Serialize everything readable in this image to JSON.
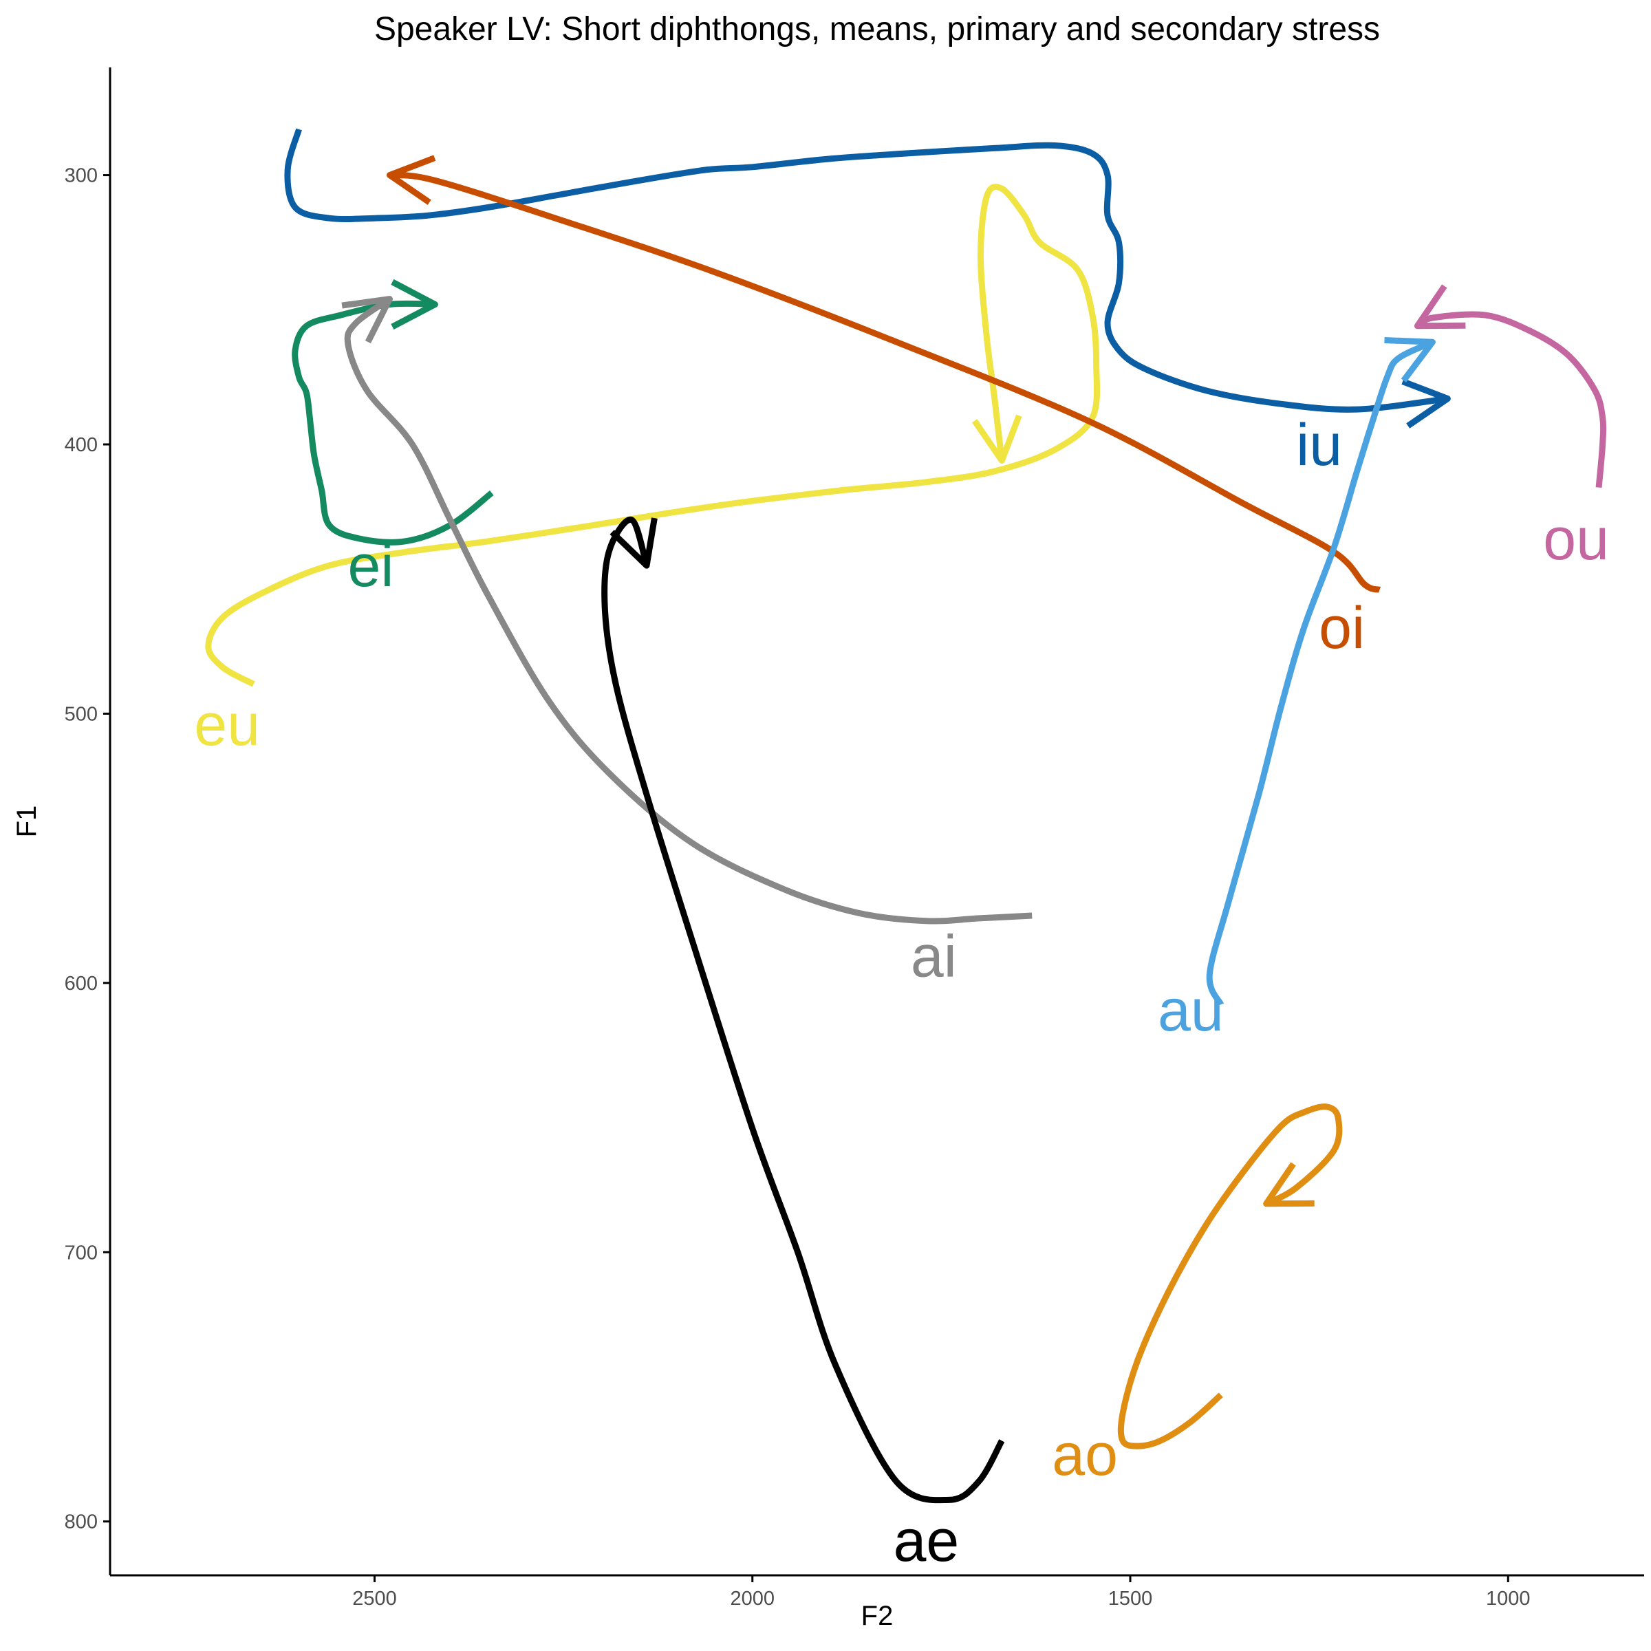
{
  "chart_data": {
    "type": "line",
    "title": "Speaker LV: Short diphthongs, means, primary and secondary stress",
    "xlabel": "F2",
    "ylabel": "F1",
    "x_reversed": true,
    "y_reversed": true,
    "xlim": [
      2850,
      820
    ],
    "ylim": [
      260,
      820
    ],
    "x_ticks": [
      2500,
      2000,
      1500,
      1000
    ],
    "y_ticks": [
      300,
      400,
      500,
      600,
      700,
      800
    ],
    "grid": false,
    "legend": "none",
    "series": [
      {
        "name": "iu",
        "color": "#0B5EA3",
        "label_pos": [
          1250,
          400
        ],
        "points": [
          [
            2600,
            283
          ],
          [
            2615,
            298
          ],
          [
            2605,
            312
          ],
          [
            2560,
            316
          ],
          [
            2500,
            316
          ],
          [
            2430,
            315
          ],
          [
            2350,
            312
          ],
          [
            2250,
            307
          ],
          [
            2150,
            302
          ],
          [
            2060,
            298
          ],
          [
            2000,
            297
          ],
          [
            1900,
            294
          ],
          [
            1800,
            292
          ],
          [
            1680,
            290
          ],
          [
            1600,
            289
          ],
          [
            1550,
            292
          ],
          [
            1530,
            300
          ],
          [
            1530,
            315
          ],
          [
            1515,
            325
          ],
          [
            1515,
            340
          ],
          [
            1530,
            355
          ],
          [
            1515,
            365
          ],
          [
            1480,
            372
          ],
          [
            1400,
            380
          ],
          [
            1300,
            385
          ],
          [
            1200,
            387
          ],
          [
            1080,
            383
          ]
        ]
      },
      {
        "name": "eu",
        "color": "#F0E442",
        "label_pos": [
          2695,
          504
        ],
        "points": [
          [
            2660,
            489
          ],
          [
            2700,
            483
          ],
          [
            2720,
            475
          ],
          [
            2700,
            464
          ],
          [
            2640,
            454
          ],
          [
            2560,
            445
          ],
          [
            2460,
            440
          ],
          [
            2350,
            436
          ],
          [
            2210,
            430
          ],
          [
            2100,
            425
          ],
          [
            2000,
            421
          ],
          [
            1880,
            417
          ],
          [
            1770,
            414
          ],
          [
            1680,
            410
          ],
          [
            1600,
            402
          ],
          [
            1550,
            390
          ],
          [
            1545,
            370
          ],
          [
            1550,
            352
          ],
          [
            1570,
            335
          ],
          [
            1620,
            325
          ],
          [
            1640,
            315
          ],
          [
            1670,
            305
          ],
          [
            1690,
            308
          ],
          [
            1698,
            330
          ],
          [
            1690,
            360
          ],
          [
            1680,
            382
          ],
          [
            1670,
            406
          ]
        ]
      },
      {
        "name": "ei",
        "color": "#138A60",
        "label_pos": [
          2505,
          445
        ],
        "points": [
          [
            2345,
            418
          ],
          [
            2400,
            430
          ],
          [
            2460,
            436
          ],
          [
            2520,
            435
          ],
          [
            2560,
            430
          ],
          [
            2570,
            417
          ],
          [
            2580,
            404
          ],
          [
            2585,
            392
          ],
          [
            2590,
            381
          ],
          [
            2600,
            375
          ],
          [
            2605,
            365
          ],
          [
            2590,
            356
          ],
          [
            2545,
            352
          ],
          [
            2480,
            348
          ],
          [
            2420,
            348
          ]
        ]
      },
      {
        "name": "ai",
        "color": "#888888",
        "label_pos": [
          1760,
          590
        ],
        "points": [
          [
            1630,
            575
          ],
          [
            1700,
            576
          ],
          [
            1770,
            577
          ],
          [
            1860,
            574
          ],
          [
            1960,
            565
          ],
          [
            2080,
            548
          ],
          [
            2190,
            522
          ],
          [
            2270,
            495
          ],
          [
            2350,
            456
          ],
          [
            2400,
            428
          ],
          [
            2450,
            400
          ],
          [
            2510,
            380
          ],
          [
            2535,
            363
          ],
          [
            2525,
            355
          ],
          [
            2480,
            346
          ]
        ]
      },
      {
        "name": "ae",
        "color": "#000000",
        "label_pos": [
          1770,
          807
        ],
        "points": [
          [
            1670,
            770
          ],
          [
            1700,
            785
          ],
          [
            1740,
            792
          ],
          [
            1810,
            785
          ],
          [
            1890,
            742
          ],
          [
            1940,
            700
          ],
          [
            2000,
            654
          ],
          [
            2080,
            584
          ],
          [
            2140,
            530
          ],
          [
            2180,
            490
          ],
          [
            2195,
            462
          ],
          [
            2190,
            440
          ],
          [
            2160,
            428
          ],
          [
            2140,
            445
          ]
        ]
      },
      {
        "name": "oi",
        "color": "#C74D00",
        "label_pos": [
          1220,
          468
        ],
        "points": [
          [
            1170,
            454
          ],
          [
            1190,
            452
          ],
          [
            1230,
            440
          ],
          [
            1350,
            422
          ],
          [
            1550,
            392
          ],
          [
            1800,
            363
          ],
          [
            2050,
            336
          ],
          [
            2250,
            317
          ],
          [
            2420,
            302
          ],
          [
            2480,
            300
          ]
        ]
      },
      {
        "name": "au",
        "color": "#4AA3E0",
        "label_pos": [
          1420,
          610
        ],
        "points": [
          [
            1380,
            608
          ],
          [
            1395,
            597
          ],
          [
            1370,
            570
          ],
          [
            1330,
            530
          ],
          [
            1300,
            497
          ],
          [
            1270,
            468
          ],
          [
            1230,
            438
          ],
          [
            1200,
            410
          ],
          [
            1180,
            392
          ],
          [
            1160,
            375
          ],
          [
            1145,
            368
          ],
          [
            1100,
            362
          ]
        ]
      },
      {
        "name": "ou",
        "color": "#C466A0",
        "label_pos": [
          910,
          435
        ],
        "points": [
          [
            880,
            416
          ],
          [
            875,
            400
          ],
          [
            875,
            390
          ],
          [
            885,
            380
          ],
          [
            920,
            367
          ],
          [
            970,
            358
          ],
          [
            1030,
            352
          ],
          [
            1100,
            353
          ],
          [
            1120,
            356
          ]
        ]
      },
      {
        "name": "ao",
        "color": "#E08E12",
        "label_pos": [
          1560,
          775
        ],
        "points": [
          [
            1380,
            753
          ],
          [
            1420,
            763
          ],
          [
            1460,
            770
          ],
          [
            1490,
            772
          ],
          [
            1510,
            770
          ],
          [
            1510,
            760
          ],
          [
            1490,
            740
          ],
          [
            1450,
            715
          ],
          [
            1400,
            690
          ],
          [
            1350,
            670
          ],
          [
            1300,
            653
          ],
          [
            1270,
            648
          ],
          [
            1240,
            646
          ],
          [
            1225,
            650
          ],
          [
            1230,
            662
          ],
          [
            1280,
            676
          ],
          [
            1320,
            682
          ]
        ]
      }
    ]
  }
}
